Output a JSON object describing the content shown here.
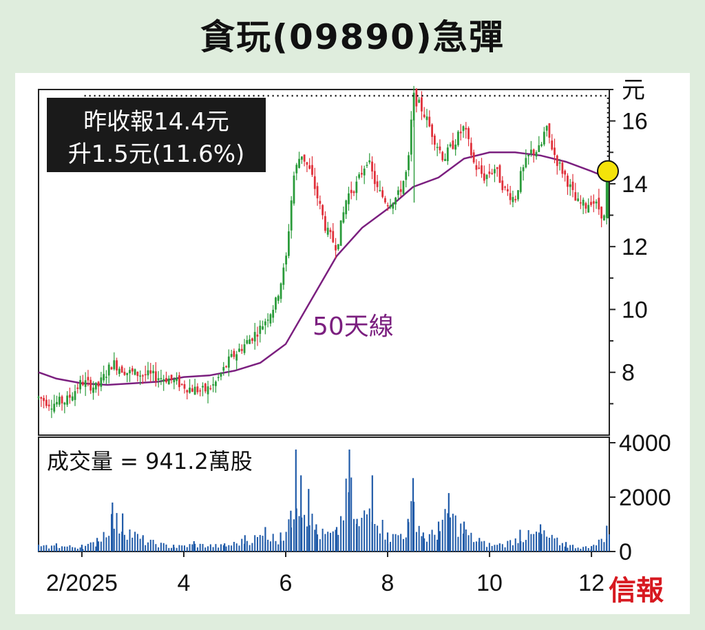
{
  "title": "貪玩(09890)急彈",
  "info_box": {
    "line1": "昨收報14.4元",
    "line2": "升1.5元(11.6%)"
  },
  "ma_label": "50天線",
  "volume_label": "成交量 = 941.2萬股",
  "brand": "信報",
  "colors": {
    "up": "#2a9b3a",
    "down": "#e0303a",
    "ma": "#7b1f7f",
    "volume": "#1f5aa8",
    "marker": "#f4e30a"
  },
  "chart_data": [
    {
      "type": "candlestick",
      "y_unit": "元",
      "ylim": [
        6,
        17
      ],
      "yticks": [
        8,
        10,
        12,
        14,
        16
      ],
      "x_tick_labels": [
        "2/2025",
        "4",
        "6",
        "8",
        "10",
        "12"
      ],
      "x_tick_months": [
        2,
        4,
        6,
        8,
        10,
        12
      ],
      "x_range_months": [
        1.15,
        12.35
      ],
      "last_close": 14.4,
      "change": 1.5,
      "change_pct": 11.6,
      "price_path": [
        [
          1.15,
          7.2
        ],
        [
          1.4,
          7.0
        ],
        [
          1.7,
          7.1
        ],
        [
          2.0,
          7.7
        ],
        [
          2.3,
          7.5
        ],
        [
          2.6,
          8.3
        ],
        [
          2.9,
          8.0
        ],
        [
          3.3,
          7.9
        ],
        [
          3.7,
          7.8
        ],
        [
          4.1,
          7.5
        ],
        [
          4.4,
          7.4
        ],
        [
          4.6,
          7.6
        ],
        [
          4.9,
          8.4
        ],
        [
          5.2,
          8.9
        ],
        [
          5.5,
          9.4
        ],
        [
          5.8,
          10.2
        ],
        [
          6.0,
          11.5
        ],
        [
          6.15,
          14.2
        ],
        [
          6.3,
          15.0
        ],
        [
          6.5,
          14.3
        ],
        [
          6.8,
          12.5
        ],
        [
          7.0,
          12.0
        ],
        [
          7.2,
          13.6
        ],
        [
          7.4,
          14.0
        ],
        [
          7.6,
          14.8
        ],
        [
          7.8,
          13.8
        ],
        [
          8.0,
          13.4
        ],
        [
          8.2,
          13.6
        ],
        [
          8.4,
          14.5
        ],
        [
          8.5,
          16.8
        ],
        [
          8.7,
          16.3
        ],
        [
          8.9,
          15.5
        ],
        [
          9.1,
          14.8
        ],
        [
          9.3,
          15.3
        ],
        [
          9.5,
          15.8
        ],
        [
          9.7,
          14.6
        ],
        [
          9.9,
          14.2
        ],
        [
          10.1,
          14.5
        ],
        [
          10.3,
          13.8
        ],
        [
          10.5,
          13.5
        ],
        [
          10.6,
          14.2
        ],
        [
          10.8,
          15.0
        ],
        [
          11.0,
          15.1
        ],
        [
          11.1,
          15.8
        ],
        [
          11.3,
          14.8
        ],
        [
          11.5,
          14.2
        ],
        [
          11.7,
          13.4
        ],
        [
          11.9,
          13.3
        ],
        [
          12.0,
          13.5
        ],
        [
          12.15,
          13.2
        ],
        [
          12.25,
          12.9
        ],
        [
          12.3,
          14.4
        ]
      ],
      "ma50_path": [
        [
          1.15,
          8.0
        ],
        [
          1.5,
          7.8
        ],
        [
          2.0,
          7.65
        ],
        [
          2.5,
          7.6
        ],
        [
          3.0,
          7.65
        ],
        [
          3.5,
          7.7
        ],
        [
          4.0,
          7.85
        ],
        [
          4.5,
          7.9
        ],
        [
          5.0,
          8.05
        ],
        [
          5.5,
          8.3
        ],
        [
          6.0,
          8.9
        ],
        [
          6.5,
          10.3
        ],
        [
          7.0,
          11.7
        ],
        [
          7.5,
          12.6
        ],
        [
          8.0,
          13.2
        ],
        [
          8.5,
          13.9
        ],
        [
          9.0,
          14.2
        ],
        [
          9.5,
          14.8
        ],
        [
          10.0,
          15.0
        ],
        [
          10.5,
          15.0
        ],
        [
          11.0,
          14.9
        ],
        [
          11.5,
          14.7
        ],
        [
          12.0,
          14.4
        ],
        [
          12.3,
          14.2
        ]
      ]
    },
    {
      "type": "bar",
      "unit": "萬股",
      "ylim": [
        0,
        4000
      ],
      "yticks": [
        0,
        2000,
        4000
      ],
      "last_volume": 941.2,
      "volume_peaks": [
        [
          1.15,
          250
        ],
        [
          1.5,
          300
        ],
        [
          2.0,
          250
        ],
        [
          2.3,
          500
        ],
        [
          2.6,
          1800
        ],
        [
          2.8,
          1400
        ],
        [
          3.2,
          600
        ],
        [
          3.8,
          250
        ],
        [
          4.2,
          380
        ],
        [
          4.8,
          300
        ],
        [
          5.2,
          600
        ],
        [
          5.6,
          900
        ],
        [
          5.9,
          700
        ],
        [
          6.1,
          1500
        ],
        [
          6.2,
          3750
        ],
        [
          6.3,
          2800
        ],
        [
          6.45,
          2300
        ],
        [
          6.6,
          1000
        ],
        [
          7.0,
          900
        ],
        [
          7.25,
          3750
        ],
        [
          7.4,
          1200
        ],
        [
          7.7,
          2800
        ],
        [
          8.0,
          700
        ],
        [
          8.4,
          1200
        ],
        [
          8.5,
          2700
        ],
        [
          8.7,
          700
        ],
        [
          9.0,
          1100
        ],
        [
          9.2,
          2150
        ],
        [
          9.5,
          1100
        ],
        [
          9.8,
          500
        ],
        [
          10.2,
          300
        ],
        [
          10.6,
          800
        ],
        [
          11.0,
          1000
        ],
        [
          11.5,
          350
        ],
        [
          12.0,
          200
        ],
        [
          12.3,
          950
        ]
      ]
    }
  ]
}
